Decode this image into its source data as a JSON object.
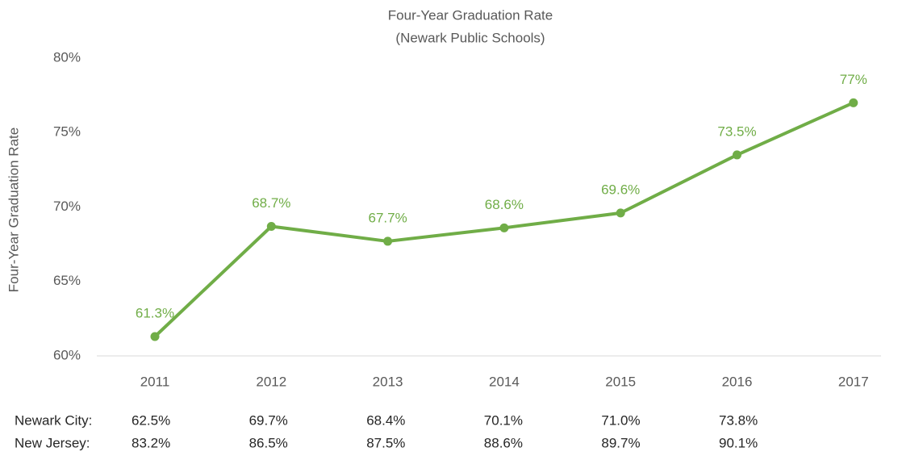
{
  "chart_data": {
    "type": "line",
    "title": "Four-Year Graduation Rate",
    "subtitle": "(Newark Public Schools)",
    "y_label": "Four-Year Graduation Rate",
    "categories": [
      "2011",
      "2012",
      "2013",
      "2014",
      "2015",
      "2016",
      "2017"
    ],
    "values": [
      61.3,
      68.7,
      67.7,
      68.6,
      69.6,
      73.5,
      77
    ],
    "value_labels": [
      "61.3%",
      "68.7%",
      "67.7%",
      "68.6%",
      "69.6%",
      "73.5%",
      "77%"
    ],
    "color": "#70ad47",
    "ylim": [
      60,
      80
    ],
    "yticks": [
      {
        "value": 60,
        "label": "60%"
      },
      {
        "value": 65,
        "label": "65%"
      },
      {
        "value": 70,
        "label": "70%"
      },
      {
        "value": 75,
        "label": "75%"
      },
      {
        "value": 80,
        "label": "80%"
      }
    ],
    "grid": false,
    "table": {
      "rows": [
        {
          "label": "Newark City:",
          "values": [
            "62.5%",
            "69.7%",
            "68.4%",
            "70.1%",
            "71.0%",
            "73.8%"
          ]
        },
        {
          "label": "New Jersey:",
          "values": [
            "83.2%",
            "86.5%",
            "87.5%",
            "88.6%",
            "89.7%",
            "90.1%"
          ]
        }
      ]
    }
  }
}
